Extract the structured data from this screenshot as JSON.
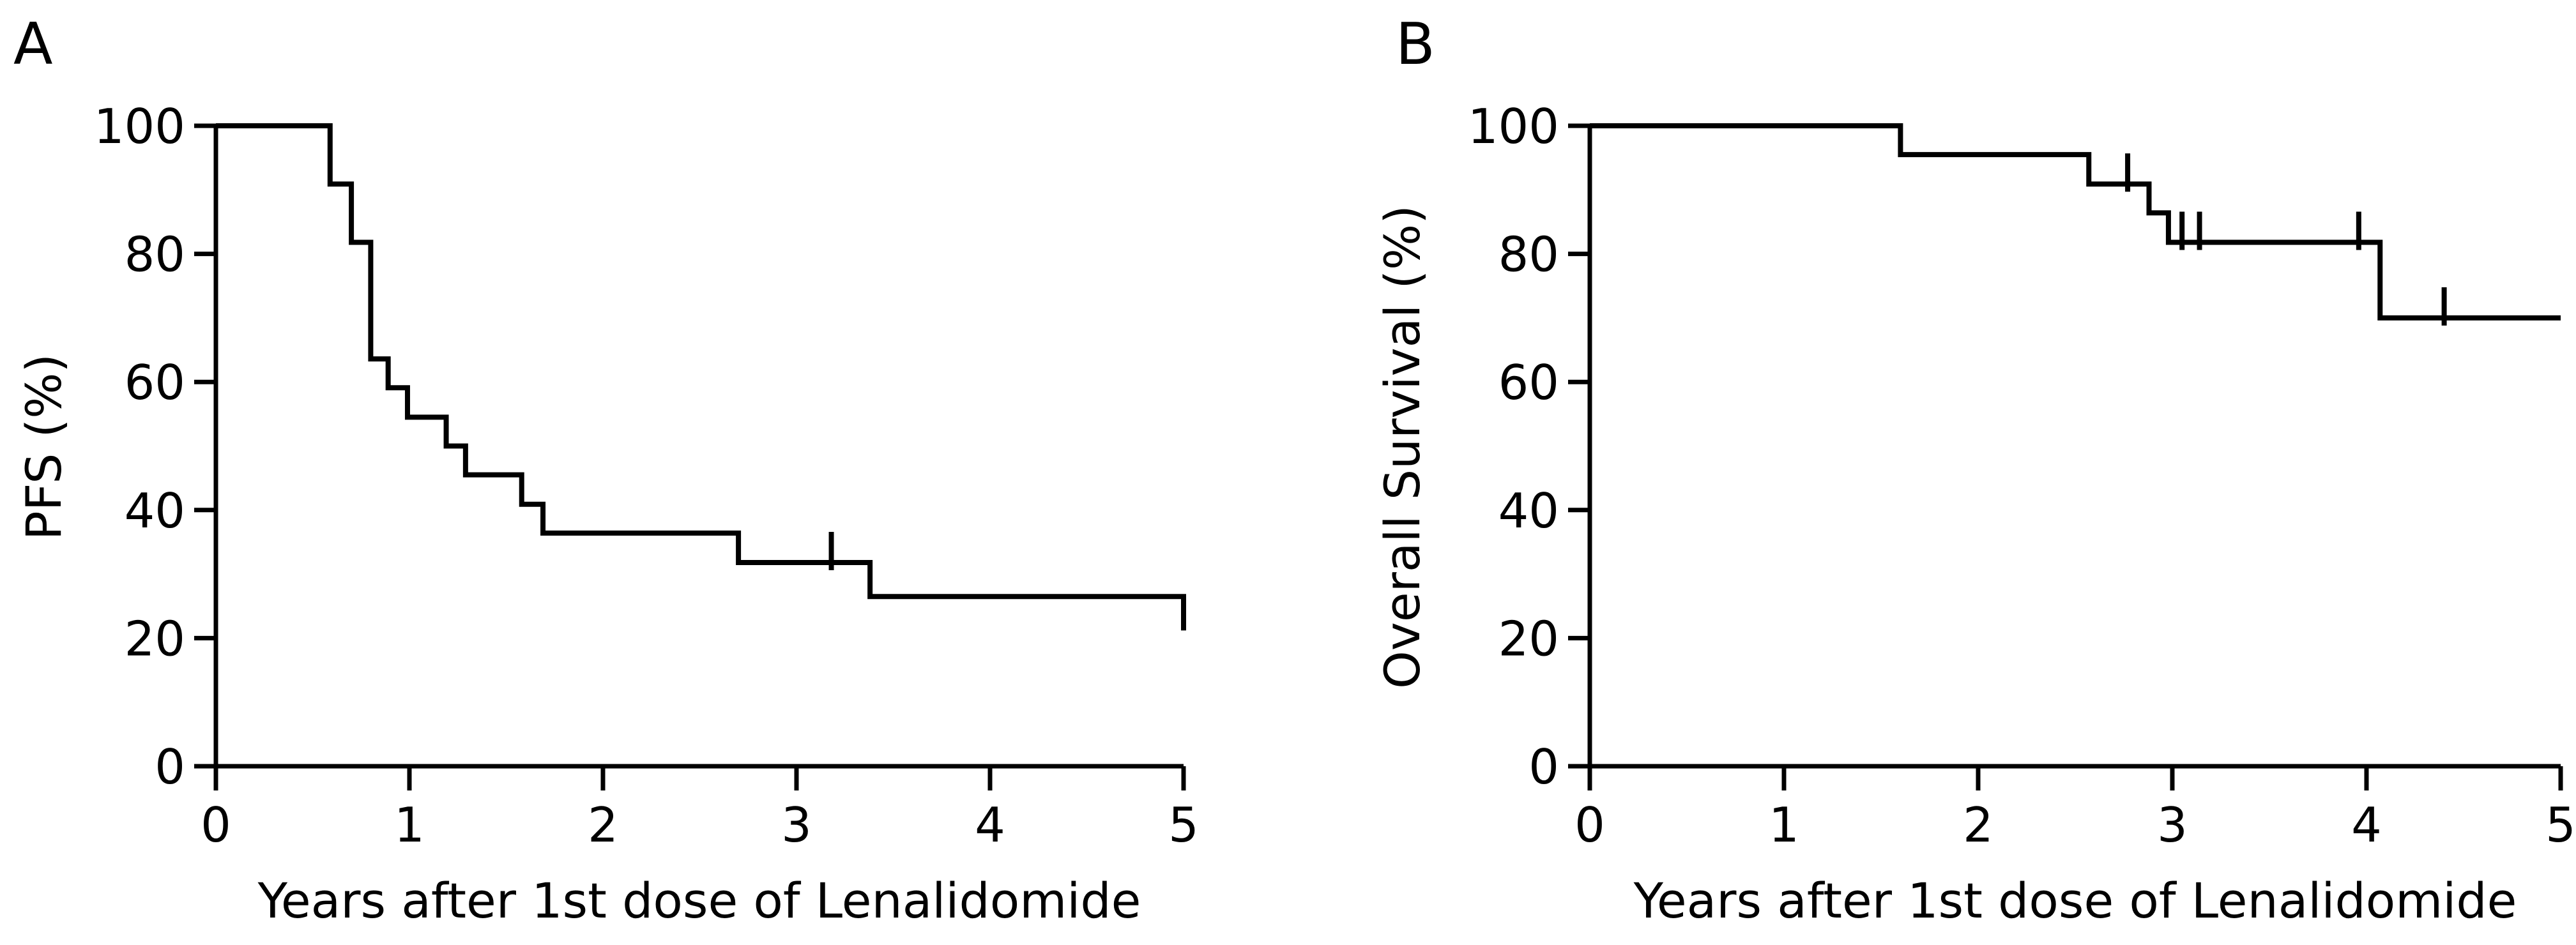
{
  "figure": {
    "background_color": "#ffffff",
    "line_color": "#000000",
    "n_panels": 2
  },
  "chart_data": [
    {
      "type": "line",
      "subtype": "kaplan-meier-step",
      "panel_label": "A",
      "xlabel": "Years after 1st dose of Lenalidomide",
      "ylabel": "PFS (%)",
      "xlim": [
        0,
        5
      ],
      "ylim": [
        0,
        100
      ],
      "xticks": [
        0,
        1,
        2,
        3,
        4,
        5
      ],
      "yticks": [
        0,
        20,
        40,
        60,
        80,
        100
      ],
      "grid": false,
      "legend": null,
      "line_color": "#000000",
      "steps": [
        [
          0,
          100
        ],
        [
          0.59,
          90.9
        ],
        [
          0.7,
          81.8
        ],
        [
          0.8,
          63.6
        ],
        [
          0.89,
          59.1
        ],
        [
          0.99,
          54.5
        ],
        [
          1.19,
          50.0
        ],
        [
          1.29,
          45.5
        ],
        [
          1.58,
          40.9
        ],
        [
          1.69,
          36.4
        ],
        [
          2.7,
          31.8
        ],
        [
          3.38,
          26.5
        ],
        [
          5.0,
          21.2
        ]
      ],
      "censor_marks": [
        [
          3.18,
          31.8
        ]
      ],
      "end_style": "drop"
    },
    {
      "type": "line",
      "subtype": "kaplan-meier-step",
      "panel_label": "B",
      "xlabel": "Years after 1st dose of Lenalidomide",
      "ylabel": "Overall Survival (%)",
      "xlim": [
        0,
        5
      ],
      "ylim": [
        0,
        100
      ],
      "xticks": [
        0,
        1,
        2,
        3,
        4,
        5
      ],
      "yticks": [
        0,
        20,
        40,
        60,
        80,
        100
      ],
      "grid": false,
      "legend": null,
      "line_color": "#000000",
      "steps": [
        [
          0,
          100
        ],
        [
          1.6,
          95.5
        ],
        [
          2.57,
          90.9
        ],
        [
          2.88,
          86.4
        ],
        [
          2.98,
          81.8
        ],
        [
          4.07,
          70.0
        ]
      ],
      "censor_marks": [
        [
          2.77,
          90.9
        ],
        [
          3.05,
          81.8
        ],
        [
          3.14,
          81.8
        ],
        [
          3.96,
          81.8
        ],
        [
          4.4,
          70.0
        ]
      ],
      "end_style": "flat"
    }
  ]
}
